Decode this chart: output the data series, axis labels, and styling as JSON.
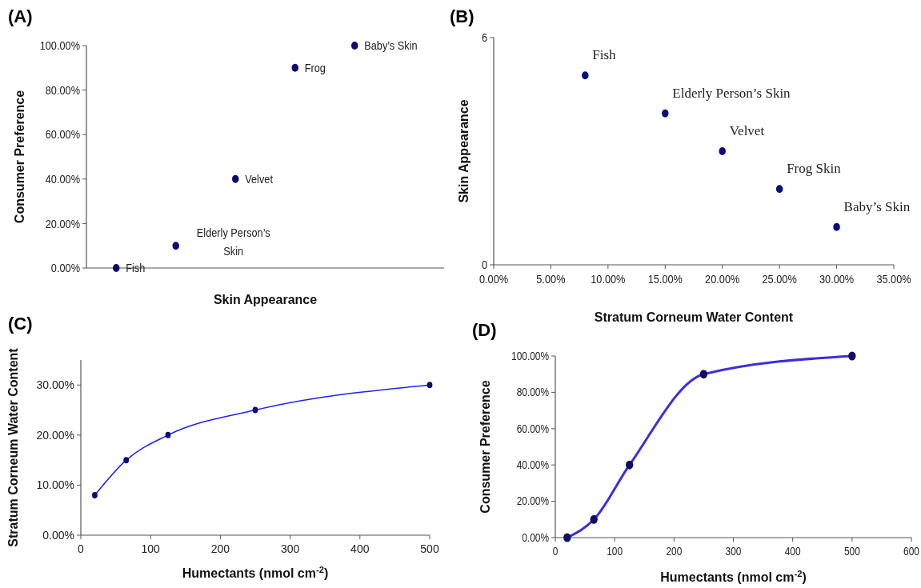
{
  "chart_data": [
    {
      "type": "scatter",
      "title": "(A)",
      "xlabel": "Skin Appearance",
      "ylabel": "Consumer Preference",
      "categories": [
        null,
        null,
        null,
        null,
        null,
        null
      ],
      "tick_labels": "y",
      "marker": "circle",
      "series": [
        {
          "color": "#0b0b6e",
          "values": [
            0,
            10,
            40,
            90,
            100,
            null
          ]
        }
      ],
      "ylim": [
        0,
        100
      ],
      "yticks": [
        {
          "value": 0,
          "label": "0.00%"
        },
        {
          "value": 20,
          "label": "20.00%"
        },
        {
          "value": 40,
          "label": "40.00%"
        },
        {
          "value": 60,
          "label": "60.00%"
        },
        {
          "value": 80,
          "label": "80.00%"
        },
        {
          "value": 100,
          "label": "100.00%"
        }
      ],
      "annotations": [
        "Fish",
        "Elderly Person’s Skin",
        "Velvet",
        "Frog",
        "Baby’s Skin"
      ]
    },
    {
      "type": "scatter",
      "title": "(B)",
      "xlabel": "Stratum Corneum Water Content",
      "ylabel": "Skin Appearance",
      "x": [
        8,
        15,
        20,
        25,
        30
      ],
      "marker": "circle",
      "series": [
        {
          "color": "#0b0b80",
          "values": [
            5,
            4,
            3,
            2,
            1
          ]
        }
      ],
      "xlim": [
        0,
        35
      ],
      "xticks": [
        {
          "value": 0,
          "label": "0.00%"
        },
        {
          "value": 5,
          "label": "5.00%"
        },
        {
          "value": 10,
          "label": "10.00%"
        },
        {
          "value": 15,
          "label": "15.00%"
        },
        {
          "value": 20,
          "label": "20.00%"
        },
        {
          "value": 25,
          "label": "25.00%"
        },
        {
          "value": 30,
          "label": "30.00%"
        },
        {
          "value": 35,
          "label": "35.00%"
        }
      ],
      "ylim": [
        0,
        6
      ],
      "yticks": [
        0,
        6
      ],
      "annotations": [
        {
          "text": "Fish",
          "x": 8,
          "y": 5
        },
        {
          "text": "Elderly Person’s Skin",
          "x": 15,
          "y": 4
        },
        {
          "text": "Velvet",
          "x": 20,
          "y": 3
        },
        {
          "text": "Frog Skin",
          "x": 25,
          "y": 2
        },
        {
          "text": "Baby’s Skin",
          "x": 30,
          "y": 1
        }
      ]
    },
    {
      "type": "line",
      "title": "(C)",
      "xlabel": "Humectants (nmol cm$^{-2}$)",
      "ylabel": "Stratum Corneum Water Content",
      "x": [
        20,
        65,
        125,
        250,
        500
      ],
      "marker": "circle",
      "series": [
        {
          "color": "#1f1fff",
          "values": [
            8,
            15,
            20,
            25,
            30
          ],
          "marker": "none"
        },
        {
          "type": "scatter",
          "color": "#0b0b78",
          "values": [
            8,
            15,
            20,
            25,
            30
          ]
        }
      ],
      "xlim": [
        0,
        500
      ],
      "xticks": [
        0,
        100,
        200,
        300,
        400,
        500
      ],
      "ylim": [
        0,
        35
      ],
      "yticks": [
        {
          "value": 0,
          "label": "0.00%"
        },
        {
          "value": 10,
          "label": "10.00%"
        },
        {
          "value": 20,
          "label": "20.00%"
        },
        {
          "value": 30,
          "label": "30.00%"
        }
      ]
    },
    {
      "type": "line",
      "title": "(D)",
      "xlabel": "Humectants (nmol cm$^{-2}$)",
      "ylabel": "Consumer Preference",
      "x": [
        20,
        65,
        125,
        250,
        500
      ],
      "marker": "circle",
      "series": [
        {
          "color": "#3a2ee0",
          "values": [
            0,
            10,
            40,
            90,
            100
          ],
          "marker": "none"
        },
        {
          "type": "scatter",
          "color": "#101060",
          "values": [
            0,
            10,
            40,
            90,
            100
          ]
        }
      ],
      "xlim": [
        0,
        600
      ],
      "xticks": [
        0,
        100,
        200,
        300,
        400,
        500,
        600
      ],
      "ylim": [
        0,
        100
      ],
      "yticks": [
        {
          "value": 0,
          "label": "0.00%"
        },
        {
          "value": 20,
          "label": "20.00%"
        },
        {
          "value": 40,
          "label": "40.00%"
        },
        {
          "value": 60,
          "label": "60.00%"
        },
        {
          "value": 80,
          "label": "80.00%"
        },
        {
          "value": 100,
          "label": "100.00%"
        }
      ]
    }
  ]
}
